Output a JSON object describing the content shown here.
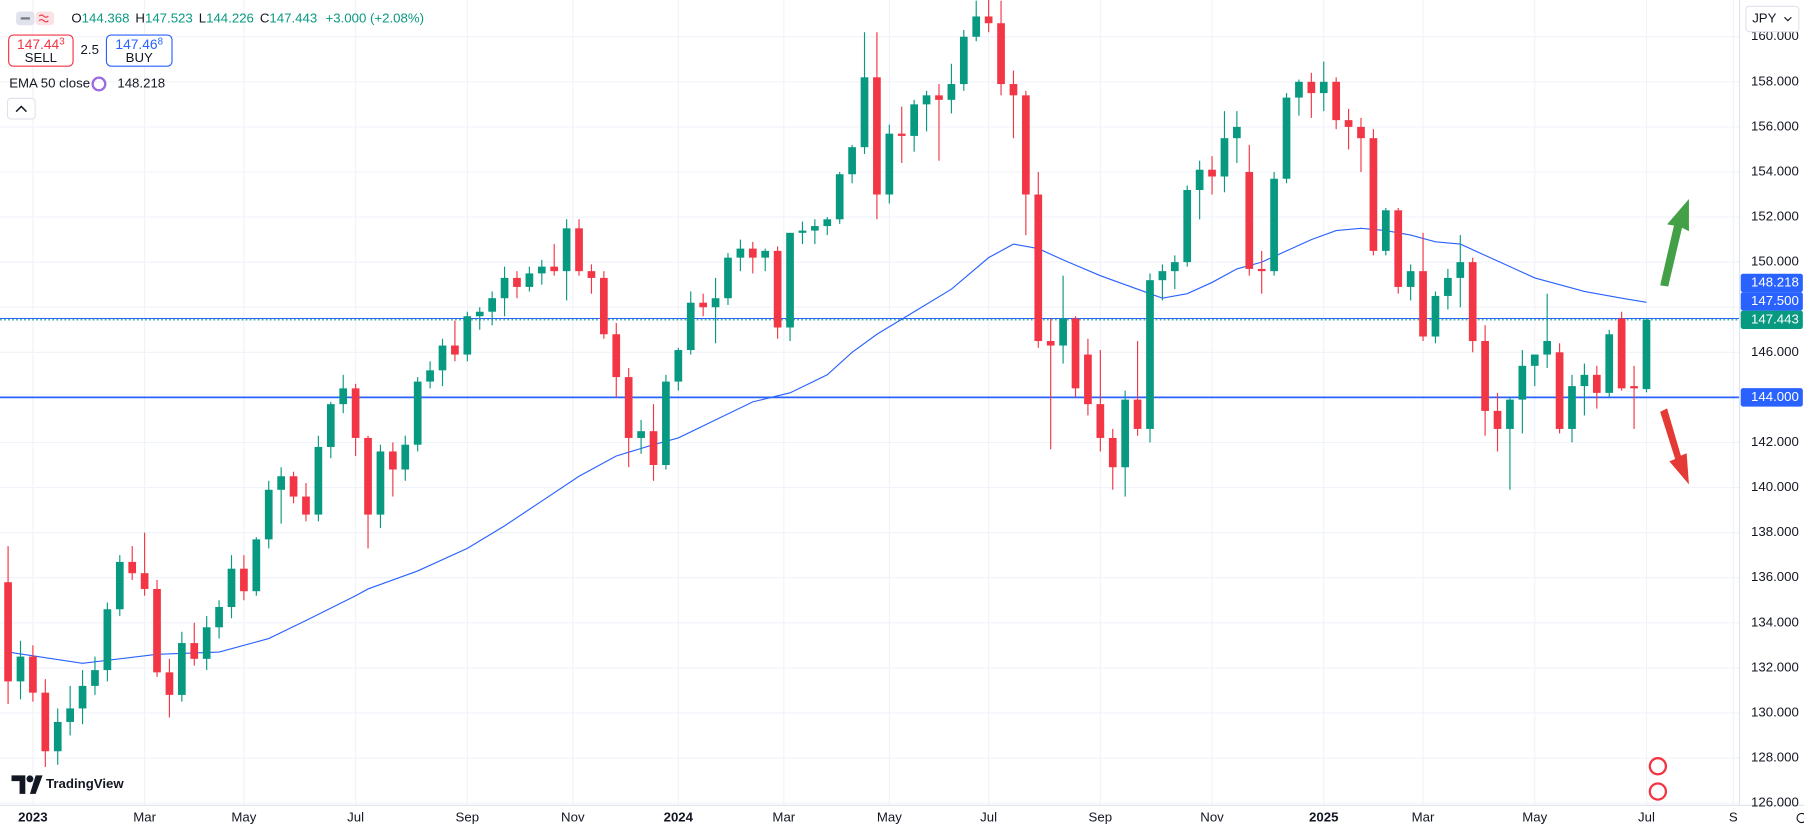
{
  "header": {
    "ohlc": [
      {
        "label": "O",
        "value": "144.368"
      },
      {
        "label": "H",
        "value": "147.523"
      },
      {
        "label": "L",
        "value": "144.226"
      },
      {
        "label": "C",
        "value": "147.443"
      }
    ],
    "change": "+3.000 (+2.08%)",
    "sell": {
      "main": "147.44",
      "pip": "3",
      "label": "SELL"
    },
    "spread": "2.5",
    "buy": {
      "main": "147.46",
      "pip": "8",
      "label": "BUY"
    },
    "indicator": {
      "label": "EMA 50 close",
      "value": 148.218
    },
    "currency": "JPY",
    "logo": "TradingView"
  },
  "chart_data": {
    "type": "candlestick",
    "up_color": "#089981",
    "down_color": "#f23645",
    "xlim": [
      -0.65,
      139.5
    ],
    "ylim": [
      125.9,
      161.63
    ],
    "xticks": [
      {
        "value": 2,
        "label": "2023"
      },
      {
        "value": 11,
        "label": "Mar"
      },
      {
        "value": 19,
        "label": "May"
      },
      {
        "value": 28,
        "label": "Jul"
      },
      {
        "value": 37,
        "label": "Sep"
      },
      {
        "value": 45.5,
        "label": "Nov"
      },
      {
        "value": 54,
        "label": "2024"
      },
      {
        "value": 62.5,
        "label": "Mar"
      },
      {
        "value": 71,
        "label": "May"
      },
      {
        "value": 79,
        "label": "Jul"
      },
      {
        "value": 88,
        "label": "Sep"
      },
      {
        "value": 97,
        "label": "Nov"
      },
      {
        "value": 106,
        "label": "2025"
      },
      {
        "value": 114,
        "label": "Mar"
      },
      {
        "value": 123,
        "label": "May"
      },
      {
        "value": 132,
        "label": "Jul"
      },
      {
        "value": 139,
        "label": "S"
      }
    ],
    "yticks": [
      {
        "value": 126,
        "label": "126.000"
      },
      {
        "value": 128,
        "label": "128.000"
      },
      {
        "value": 130,
        "label": "130.000"
      },
      {
        "value": 132,
        "label": "132.000"
      },
      {
        "value": 134,
        "label": "134.000"
      },
      {
        "value": 136,
        "label": "136.000"
      },
      {
        "value": 138,
        "label": "138.000"
      },
      {
        "value": 140,
        "label": "140.000"
      },
      {
        "value": 142,
        "label": "142.000"
      },
      {
        "value": 144,
        "label": "144.000"
      },
      {
        "value": 146,
        "label": "146.000"
      },
      {
        "value": 148,
        "label": "148.000"
      },
      {
        "value": 150,
        "label": "150.000"
      },
      {
        "value": 152,
        "label": "152.000"
      },
      {
        "value": 154,
        "label": "154.000"
      },
      {
        "value": 156,
        "label": "156.000"
      },
      {
        "value": 158,
        "label": "158.000"
      },
      {
        "value": 160,
        "label": "160.000"
      }
    ],
    "grid": true,
    "ohlc": [
      [
        135.8,
        137.4,
        130.4,
        131.4
      ],
      [
        131.4,
        133.2,
        130.6,
        132.5
      ],
      [
        132.5,
        133.0,
        130.5,
        130.9
      ],
      [
        130.9,
        131.5,
        127.6,
        128.3
      ],
      [
        128.3,
        130.2,
        127.7,
        129.6
      ],
      [
        129.6,
        131.2,
        129.0,
        130.2
      ],
      [
        130.2,
        131.9,
        129.5,
        131.2
      ],
      [
        131.2,
        132.5,
        130.8,
        131.9
      ],
      [
        131.9,
        134.9,
        131.4,
        134.6
      ],
      [
        134.6,
        137.0,
        134.3,
        136.7
      ],
      [
        136.7,
        137.4,
        135.9,
        136.2
      ],
      [
        136.2,
        138.0,
        135.2,
        135.5
      ],
      [
        135.5,
        135.9,
        131.6,
        131.8
      ],
      [
        131.8,
        132.4,
        129.8,
        130.8
      ],
      [
        130.8,
        133.6,
        130.5,
        133.1
      ],
      [
        133.1,
        134.0,
        132.1,
        132.4
      ],
      [
        132.4,
        134.3,
        131.9,
        133.8
      ],
      [
        133.8,
        135.0,
        133.3,
        134.7
      ],
      [
        134.7,
        137.0,
        134.2,
        136.4
      ],
      [
        136.4,
        137.0,
        135.0,
        135.4
      ],
      [
        135.4,
        137.8,
        135.2,
        137.7
      ],
      [
        137.7,
        140.3,
        137.3,
        139.9
      ],
      [
        139.9,
        140.9,
        138.4,
        140.5
      ],
      [
        140.5,
        140.7,
        139.3,
        139.6
      ],
      [
        139.6,
        140.2,
        138.5,
        138.8
      ],
      [
        138.8,
        142.3,
        138.5,
        141.8
      ],
      [
        141.8,
        143.8,
        141.3,
        143.7
      ],
      [
        143.7,
        145.0,
        143.3,
        144.4
      ],
      [
        144.4,
        144.6,
        141.4,
        142.2
      ],
      [
        142.2,
        142.3,
        137.3,
        138.8
      ],
      [
        138.8,
        141.9,
        138.2,
        141.6
      ],
      [
        141.6,
        142.0,
        139.6,
        140.8
      ],
      [
        140.8,
        142.3,
        140.3,
        141.9
      ],
      [
        141.9,
        144.9,
        141.6,
        144.7
      ],
      [
        144.7,
        145.6,
        144.4,
        145.2
      ],
      [
        145.2,
        146.6,
        144.5,
        146.3
      ],
      [
        146.3,
        147.4,
        145.6,
        145.9
      ],
      [
        145.9,
        147.8,
        145.6,
        147.6
      ],
      [
        147.6,
        148.0,
        147.0,
        147.8
      ],
      [
        147.8,
        148.7,
        147.2,
        148.4
      ],
      [
        148.4,
        149.8,
        147.6,
        149.3
      ],
      [
        149.3,
        149.6,
        148.4,
        148.9
      ],
      [
        148.9,
        149.8,
        148.7,
        149.5
      ],
      [
        149.5,
        150.1,
        149.0,
        149.8
      ],
      [
        149.8,
        150.8,
        149.4,
        149.6
      ],
      [
        149.6,
        151.9,
        148.3,
        151.5
      ],
      [
        151.5,
        151.9,
        149.4,
        149.6
      ],
      [
        149.6,
        149.9,
        148.6,
        149.3
      ],
      [
        149.3,
        149.6,
        146.6,
        146.8
      ],
      [
        146.8,
        147.3,
        144.0,
        144.9
      ],
      [
        144.9,
        145.3,
        140.9,
        142.2
      ],
      [
        142.2,
        143.0,
        141.5,
        142.5
      ],
      [
        142.5,
        143.7,
        140.3,
        141.0
      ],
      [
        141.0,
        145.0,
        140.8,
        144.7
      ],
      [
        144.7,
        146.2,
        144.3,
        146.1
      ],
      [
        146.1,
        148.7,
        145.9,
        148.2
      ],
      [
        148.2,
        148.6,
        147.6,
        148.0
      ],
      [
        148.0,
        149.3,
        146.4,
        148.4
      ],
      [
        148.4,
        150.4,
        148.1,
        150.2
      ],
      [
        150.2,
        151.0,
        149.6,
        150.6
      ],
      [
        150.6,
        150.9,
        149.5,
        150.2
      ],
      [
        150.2,
        150.6,
        149.6,
        150.5
      ],
      [
        150.5,
        150.7,
        146.6,
        147.1
      ],
      [
        147.1,
        151.3,
        146.5,
        151.3
      ],
      [
        151.3,
        151.8,
        150.8,
        151.4
      ],
      [
        151.4,
        151.9,
        150.8,
        151.6
      ],
      [
        151.6,
        152.0,
        151.2,
        151.9
      ],
      [
        151.9,
        154.0,
        151.7,
        153.9
      ],
      [
        153.9,
        155.2,
        153.5,
        155.1
      ],
      [
        155.1,
        160.2,
        154.8,
        158.2
      ],
      [
        158.2,
        160.2,
        151.9,
        153.0
      ],
      [
        153.0,
        156.1,
        152.6,
        155.7
      ],
      [
        155.7,
        156.9,
        154.4,
        155.6
      ],
      [
        155.6,
        157.2,
        154.9,
        157.0
      ],
      [
        157.0,
        157.6,
        155.8,
        157.4
      ],
      [
        157.4,
        157.9,
        154.5,
        157.2
      ],
      [
        157.2,
        158.8,
        156.6,
        157.9
      ],
      [
        157.9,
        160.3,
        157.6,
        160.0
      ],
      [
        160.0,
        161.6,
        159.8,
        160.9
      ],
      [
        160.9,
        161.7,
        160.2,
        160.6
      ],
      [
        160.6,
        161.6,
        157.4,
        157.9
      ],
      [
        157.9,
        158.5,
        155.5,
        157.4
      ],
      [
        157.4,
        157.6,
        151.2,
        153.0
      ],
      [
        153.0,
        154.0,
        146.2,
        146.5
      ],
      [
        146.5,
        147.5,
        141.7,
        146.3
      ],
      [
        146.3,
        149.4,
        145.5,
        147.5
      ],
      [
        147.5,
        147.6,
        144.0,
        144.4
      ],
      [
        145.9,
        146.6,
        143.2,
        143.7
      ],
      [
        143.7,
        146.1,
        141.6,
        142.2
      ],
      [
        142.2,
        142.6,
        139.9,
        140.9
      ],
      [
        140.9,
        144.3,
        139.6,
        143.9
      ],
      [
        143.9,
        146.5,
        142.3,
        142.6
      ],
      [
        142.6,
        149.5,
        142.0,
        149.2
      ],
      [
        149.2,
        149.9,
        148.3,
        149.6
      ],
      [
        149.6,
        150.3,
        148.8,
        150.0
      ],
      [
        150.0,
        153.4,
        149.8,
        153.2
      ],
      [
        153.2,
        154.5,
        151.9,
        154.1
      ],
      [
        154.1,
        154.7,
        153.0,
        153.8
      ],
      [
        153.8,
        156.7,
        153.1,
        155.5
      ],
      [
        155.5,
        156.7,
        154.4,
        156.0
      ],
      [
        154.0,
        155.2,
        149.4,
        149.7
      ],
      [
        149.7,
        150.5,
        148.6,
        149.6
      ],
      [
        149.6,
        154.0,
        149.4,
        153.7
      ],
      [
        153.7,
        157.5,
        153.5,
        157.3
      ],
      [
        157.3,
        158.1,
        156.5,
        158.0
      ],
      [
        158.0,
        158.4,
        156.4,
        157.5
      ],
      [
        157.5,
        158.9,
        156.7,
        158.0
      ],
      [
        158.0,
        158.2,
        155.9,
        156.3
      ],
      [
        156.3,
        156.8,
        155.0,
        156.0
      ],
      [
        156.0,
        156.4,
        154.0,
        155.5
      ],
      [
        155.5,
        155.9,
        150.3,
        150.5
      ],
      [
        150.5,
        152.4,
        150.3,
        152.3
      ],
      [
        152.3,
        152.4,
        148.6,
        148.9
      ],
      [
        148.9,
        149.9,
        148.3,
        149.6
      ],
      [
        149.6,
        151.3,
        146.5,
        146.7
      ],
      [
        146.7,
        148.7,
        146.4,
        148.5
      ],
      [
        148.5,
        149.7,
        147.9,
        149.3
      ],
      [
        149.3,
        151.2,
        148.0,
        150.0
      ],
      [
        150.0,
        150.2,
        146.0,
        146.5
      ],
      [
        146.5,
        147.2,
        142.3,
        143.4
      ],
      [
        143.4,
        144.2,
        141.6,
        142.6
      ],
      [
        142.6,
        144.0,
        139.9,
        143.9
      ],
      [
        143.9,
        146.1,
        142.4,
        145.4
      ],
      [
        145.4,
        145.9,
        144.5,
        145.9
      ],
      [
        145.9,
        148.6,
        145.3,
        146.5
      ],
      [
        146.0,
        146.4,
        142.4,
        142.6
      ],
      [
        142.6,
        145.0,
        142.0,
        144.5
      ],
      [
        144.5,
        145.5,
        143.2,
        145.0
      ],
      [
        145.0,
        145.4,
        143.5,
        144.2
      ],
      [
        144.2,
        147.0,
        144.0,
        146.8
      ],
      [
        147.5,
        147.8,
        144.3,
        144.4
      ],
      [
        144.5,
        145.4,
        142.6,
        144.4
      ],
      [
        144.368,
        147.523,
        144.226,
        147.443
      ]
    ],
    "ema": {
      "color": "#2962ff",
      "x": [
        0,
        6,
        12,
        17,
        21,
        24,
        28,
        29,
        33,
        37,
        40,
        43,
        46,
        49,
        52,
        54,
        57,
        60,
        63,
        66,
        68,
        70,
        73,
        76,
        79,
        81,
        83,
        85,
        88,
        91,
        93,
        95,
        97,
        99,
        101,
        103,
        105,
        107,
        109,
        111,
        113,
        115,
        117,
        119,
        121,
        123,
        125,
        127,
        130,
        132
      ],
      "values": [
        132.7,
        132.2,
        132.6,
        132.7,
        133.3,
        134.1,
        135.2,
        135.5,
        136.3,
        137.3,
        138.3,
        139.4,
        140.5,
        141.4,
        141.9,
        142.2,
        143.0,
        143.8,
        144.2,
        145.0,
        146.0,
        146.8,
        147.8,
        148.8,
        150.2,
        150.8,
        150.6,
        150.1,
        149.4,
        148.8,
        148.4,
        148.6,
        149.1,
        149.7,
        150.0,
        150.5,
        151.0,
        151.4,
        151.5,
        151.4,
        151.2,
        150.9,
        150.8,
        150.3,
        149.8,
        149.3,
        149.0,
        148.7,
        148.4,
        148.218
      ]
    },
    "price_labels": [
      {
        "value": 144,
        "label": "144.000",
        "color": "#2962ff",
        "line": "solid"
      },
      {
        "value": 147.443,
        "color": "#089981",
        "line": "dotted"
      },
      {
        "value": 147.5,
        "label": "147.500",
        "color": "#2962ff",
        "line": "thin"
      },
      {
        "value": 148.218,
        "color": "#2962ff",
        "line": "none"
      }
    ]
  }
}
